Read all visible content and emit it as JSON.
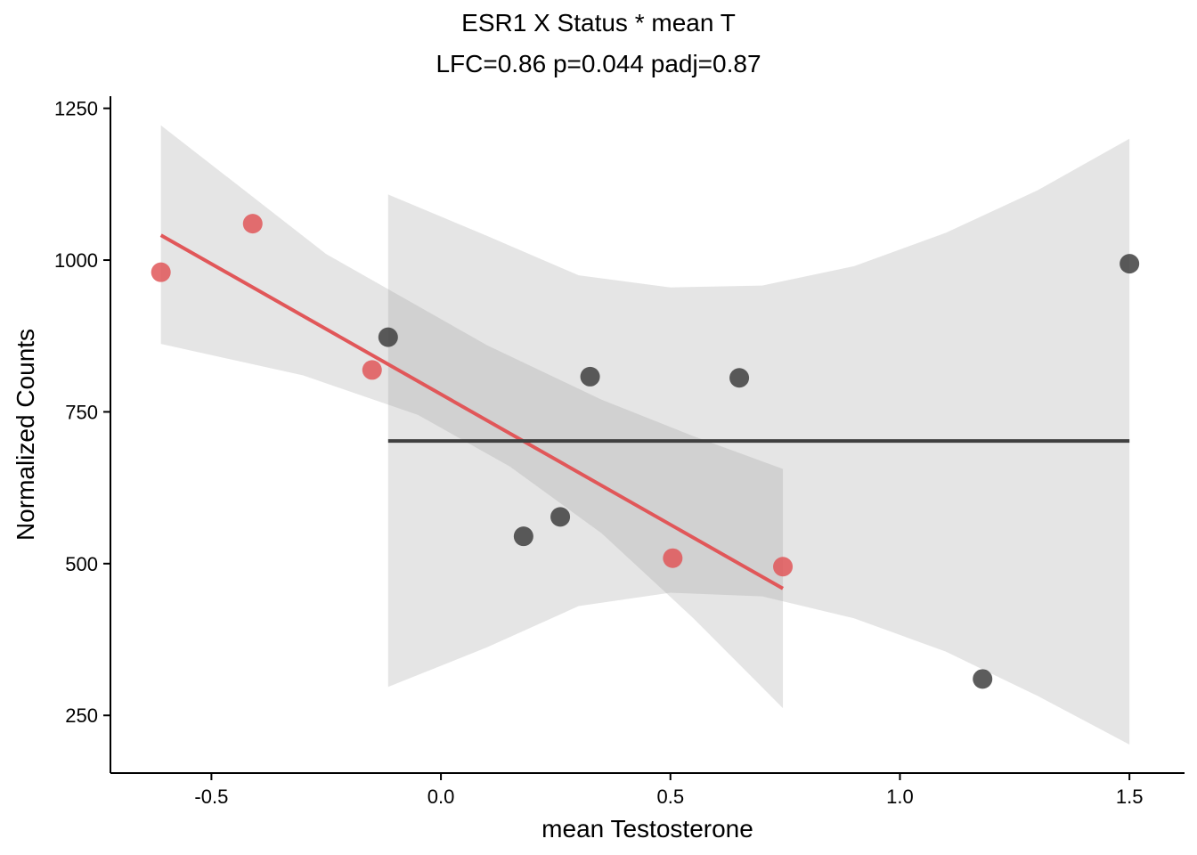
{
  "chart_data": {
    "type": "scatter",
    "title": "ESR1 X Status * mean T",
    "subtitle": "LFC=0.86 p=0.044 padj=0.87",
    "xlabel": "mean Testosterone",
    "ylabel": "Normalized Counts",
    "xlim": [
      -0.72,
      1.62
    ],
    "ylim": [
      155,
      1270
    ],
    "xticks": [
      -0.5,
      0.0,
      0.5,
      1.0,
      1.5
    ],
    "xtick_labels": [
      "-0.5",
      "0.0",
      "0.5",
      "1.0",
      "1.5"
    ],
    "yticks": [
      250,
      500,
      750,
      1000,
      1250
    ],
    "ytick_labels": [
      "250",
      "500",
      "750",
      "1000",
      "1250"
    ],
    "grid": false,
    "legend": "none",
    "series": [
      {
        "color": "#e15759",
        "points": [
          {
            "x": -0.61,
            "y": 980
          },
          {
            "x": -0.41,
            "y": 1060
          },
          {
            "x": -0.15,
            "y": 819
          },
          {
            "x": 0.505,
            "y": 509
          },
          {
            "x": 0.745,
            "y": 495
          }
        ],
        "fit": [
          {
            "x": -0.61,
            "y": 1041
          },
          {
            "x": 0.745,
            "y": 459
          }
        ],
        "ci_upper": [
          {
            "x": -0.61,
            "y": 1222
          },
          {
            "x": -0.25,
            "y": 1010
          },
          {
            "x": 0.1,
            "y": 860
          },
          {
            "x": 0.35,
            "y": 770
          },
          {
            "x": 0.55,
            "y": 710
          },
          {
            "x": 0.745,
            "y": 656
          }
        ],
        "ci_lower": [
          {
            "x": -0.61,
            "y": 862
          },
          {
            "x": -0.3,
            "y": 810
          },
          {
            "x": -0.05,
            "y": 745
          },
          {
            "x": 0.15,
            "y": 660
          },
          {
            "x": 0.35,
            "y": 550
          },
          {
            "x": 0.55,
            "y": 410
          },
          {
            "x": 0.745,
            "y": 262
          }
        ]
      },
      {
        "color": "#404040",
        "points": [
          {
            "x": -0.115,
            "y": 873
          },
          {
            "x": 0.18,
            "y": 545
          },
          {
            "x": 0.26,
            "y": 577
          },
          {
            "x": 0.325,
            "y": 808
          },
          {
            "x": 0.65,
            "y": 806
          },
          {
            "x": 1.18,
            "y": 310
          },
          {
            "x": 1.5,
            "y": 994
          }
        ],
        "fit": [
          {
            "x": -0.115,
            "y": 702
          },
          {
            "x": 1.5,
            "y": 702
          }
        ],
        "ci_upper": [
          {
            "x": -0.115,
            "y": 1108
          },
          {
            "x": 0.1,
            "y": 1040
          },
          {
            "x": 0.3,
            "y": 975
          },
          {
            "x": 0.5,
            "y": 955
          },
          {
            "x": 0.7,
            "y": 958
          },
          {
            "x": 0.9,
            "y": 990
          },
          {
            "x": 1.1,
            "y": 1045
          },
          {
            "x": 1.3,
            "y": 1115
          },
          {
            "x": 1.5,
            "y": 1200
          }
        ],
        "ci_lower": [
          {
            "x": -0.115,
            "y": 297
          },
          {
            "x": 0.1,
            "y": 362
          },
          {
            "x": 0.3,
            "y": 430
          },
          {
            "x": 0.5,
            "y": 452
          },
          {
            "x": 0.7,
            "y": 446
          },
          {
            "x": 0.9,
            "y": 410
          },
          {
            "x": 1.1,
            "y": 355
          },
          {
            "x": 1.3,
            "y": 282
          },
          {
            "x": 1.5,
            "y": 202
          }
        ]
      }
    ]
  }
}
